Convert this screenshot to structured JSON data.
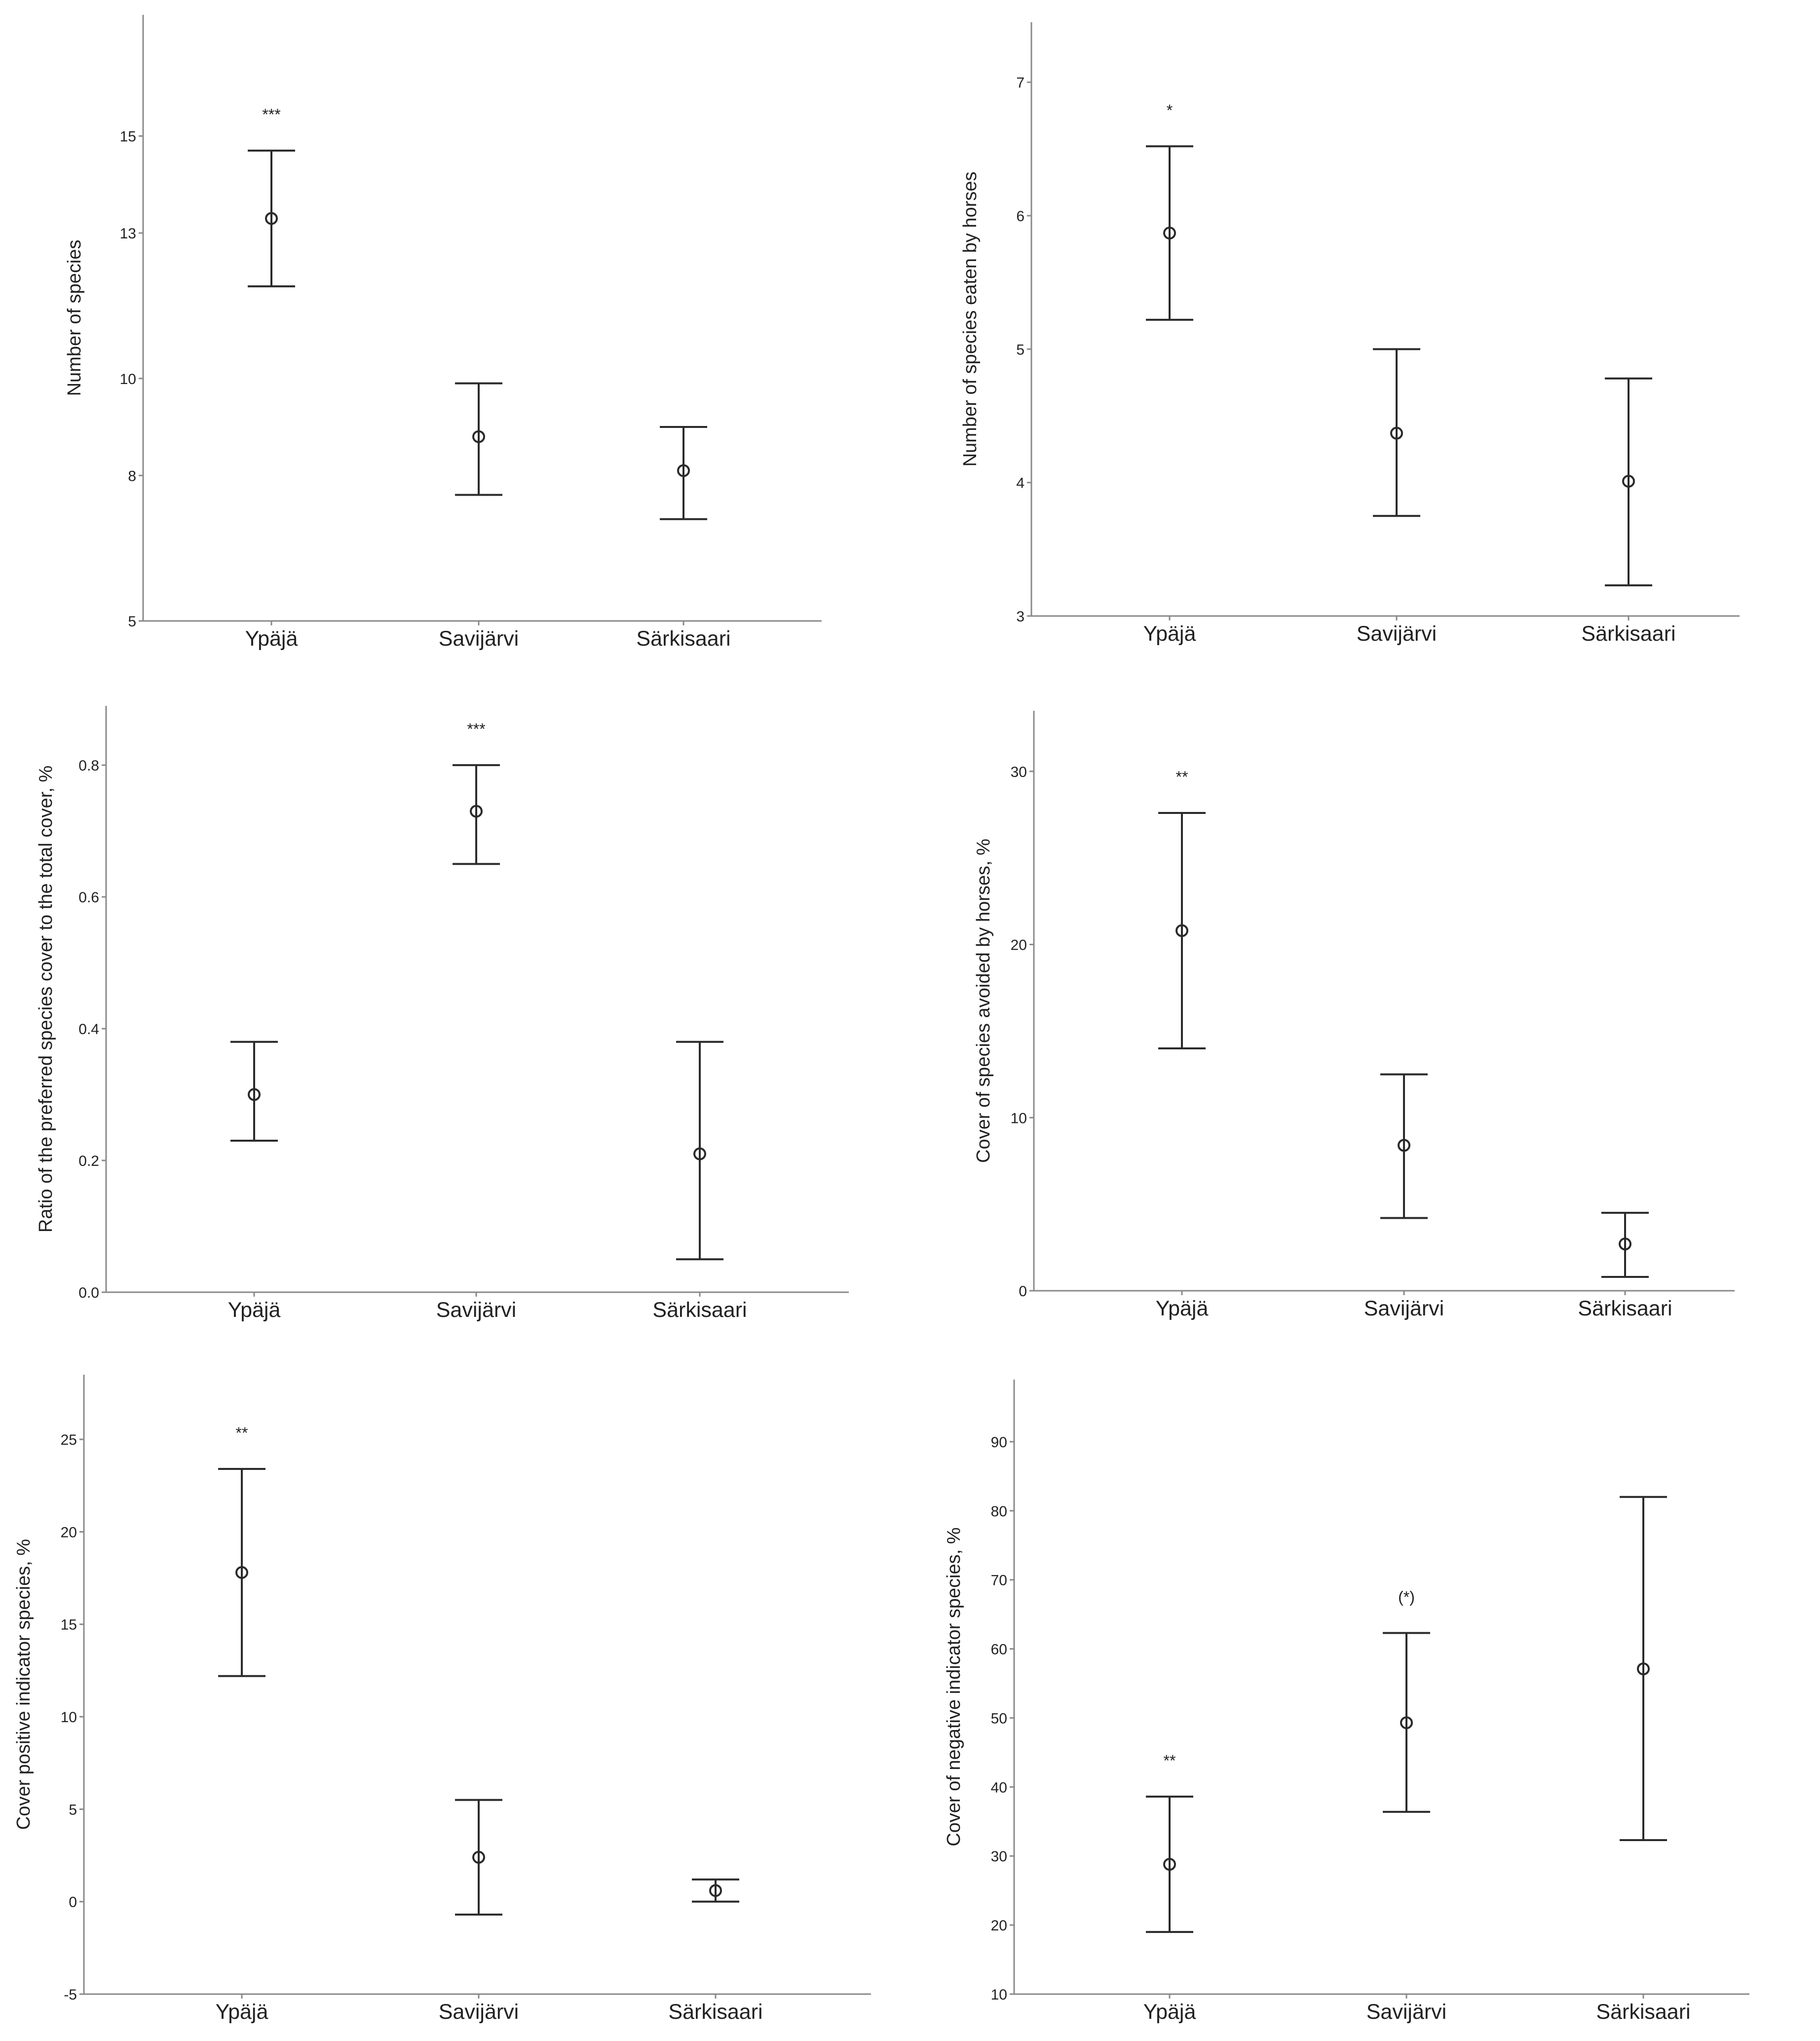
{
  "chart_data": [
    {
      "type": "errorbar",
      "title": "",
      "xlabel": "",
      "ylabel": "Number of species",
      "categories": [
        "Ypäjä",
        "Savijärvi",
        "Särkisaari"
      ],
      "yticks": [
        5,
        8,
        10,
        13,
        15
      ],
      "ylim": [
        5,
        17.5
      ],
      "mean": [
        13.3,
        8.8,
        8.1
      ],
      "lower": [
        11.9,
        7.6,
        7.1
      ],
      "upper": [
        14.7,
        9.9,
        9.0
      ],
      "annotations": [
        "***",
        "",
        ""
      ]
    },
    {
      "type": "errorbar",
      "title": "",
      "xlabel": "",
      "ylabel": "Number of species eaten by horses",
      "categories": [
        "Ypäjä",
        "Savijärvi",
        "Särkisaari"
      ],
      "yticks": [
        3,
        4,
        5,
        6,
        7
      ],
      "ylim": [
        3,
        7.45
      ],
      "mean": [
        5.87,
        4.37,
        4.01
      ],
      "lower": [
        5.22,
        3.75,
        3.23
      ],
      "upper": [
        6.52,
        5.0,
        4.78
      ],
      "annotations": [
        "*",
        "",
        ""
      ]
    },
    {
      "type": "errorbar",
      "title": "",
      "xlabel": "",
      "ylabel": "Ratio of the preferred species cover to the total cover, %",
      "categories": [
        "Ypäjä",
        "Savijärvi",
        "Särkisaari"
      ],
      "yticks": [
        0.0,
        0.2,
        0.4,
        0.6,
        0.8
      ],
      "ytick_labels": [
        "0.0",
        "0.2",
        "0.4",
        "0.6",
        "0.8"
      ],
      "ylim": [
        0,
        0.89
      ],
      "mean": [
        0.3,
        0.73,
        0.21
      ],
      "lower": [
        0.23,
        0.65,
        0.05
      ],
      "upper": [
        0.38,
        0.8,
        0.38
      ],
      "annotations": [
        "",
        "***",
        ""
      ]
    },
    {
      "type": "errorbar",
      "title": "",
      "xlabel": "",
      "ylabel": "Cover of species avoided by horses, %",
      "categories": [
        "Ypäjä",
        "Savijärvi",
        "Särkisaari"
      ],
      "yticks": [
        0,
        10,
        20,
        30
      ],
      "ylim": [
        0,
        33.5
      ],
      "mean": [
        20.8,
        8.4,
        2.7
      ],
      "lower": [
        14.0,
        4.2,
        0.8
      ],
      "upper": [
        27.6,
        12.5,
        4.5
      ],
      "annotations": [
        "**",
        "",
        ""
      ]
    },
    {
      "type": "errorbar",
      "title": "",
      "xlabel": "",
      "ylabel": "Cover positive indicator species, %",
      "categories": [
        "Ypäjä",
        "Savijärvi",
        "Särkisaari"
      ],
      "yticks": [
        -5,
        0,
        5,
        10,
        15,
        20,
        25
      ],
      "ylim": [
        -5,
        28.5
      ],
      "mean": [
        17.8,
        2.4,
        0.6
      ],
      "lower": [
        12.2,
        -0.7,
        0.0
      ],
      "upper": [
        23.4,
        5.5,
        1.2
      ],
      "annotations": [
        "**",
        "",
        ""
      ]
    },
    {
      "type": "errorbar",
      "title": "",
      "xlabel": "",
      "ylabel": "Cover of negative indicator species, %",
      "categories": [
        "Ypäjä",
        "Savijärvi",
        "Särkisaari"
      ],
      "yticks": [
        10,
        20,
        30,
        40,
        50,
        60,
        70,
        80,
        90
      ],
      "ylim": [
        10,
        99
      ],
      "mean": [
        28.8,
        49.3,
        57.1
      ],
      "lower": [
        19.0,
        36.4,
        32.3
      ],
      "upper": [
        38.6,
        62.3,
        82.0
      ],
      "annotations": [
        "**",
        "(*)",
        ""
      ]
    }
  ]
}
